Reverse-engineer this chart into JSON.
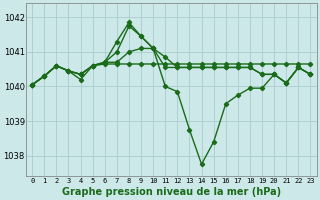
{
  "title": "Graphe pression niveau de la mer (hPa)",
  "background_color": "#cce8e8",
  "grid_color": "#aacccc",
  "line_color": "#1a6b1a",
  "marker": "D",
  "marker_size": 2.2,
  "line_width": 1.0,
  "xlim": [
    -0.5,
    23.5
  ],
  "ylim": [
    1037.4,
    1042.4
  ],
  "yticks": [
    1038,
    1039,
    1040,
    1041,
    1042
  ],
  "xticks": [
    0,
    1,
    2,
    3,
    4,
    5,
    6,
    7,
    8,
    9,
    10,
    11,
    12,
    13,
    14,
    15,
    16,
    17,
    18,
    19,
    20,
    21,
    22,
    23
  ],
  "series": [
    [
      1040.05,
      1040.3,
      1040.6,
      1040.45,
      1040.35,
      1040.6,
      1040.65,
      1040.65,
      1040.65,
      1040.65,
      1040.65,
      1040.65,
      1040.65,
      1040.65,
      1040.65,
      1040.65,
      1040.65,
      1040.65,
      1040.65,
      1040.65,
      1040.65,
      1040.65,
      1040.65,
      1040.65
    ],
    [
      1040.05,
      1040.3,
      1040.6,
      1040.45,
      1040.35,
      1040.6,
      1040.7,
      1041.0,
      1041.75,
      1041.45,
      1041.1,
      1040.85,
      1040.55,
      1040.55,
      1040.55,
      1040.55,
      1040.55,
      1040.55,
      1040.55,
      1040.35,
      1040.35,
      1040.1,
      1040.55,
      1040.35
    ],
    [
      1040.05,
      1040.3,
      1040.6,
      1040.45,
      1040.35,
      1040.6,
      1040.7,
      1041.3,
      1041.85,
      1041.45,
      1041.1,
      1040.0,
      1039.85,
      1038.75,
      1037.75,
      1038.4,
      1039.5,
      1039.75,
      1039.95,
      1039.95,
      1040.35,
      1040.1,
      1040.55,
      1040.35
    ],
    [
      1040.05,
      1040.3,
      1040.6,
      1040.45,
      1040.2,
      1040.6,
      1040.7,
      1040.7,
      1041.0,
      1041.1,
      1041.1,
      1040.55,
      1040.55,
      1040.55,
      1040.55,
      1040.55,
      1040.55,
      1040.55,
      1040.55,
      1040.35,
      1040.35,
      1040.1,
      1040.55,
      1040.35
    ]
  ]
}
